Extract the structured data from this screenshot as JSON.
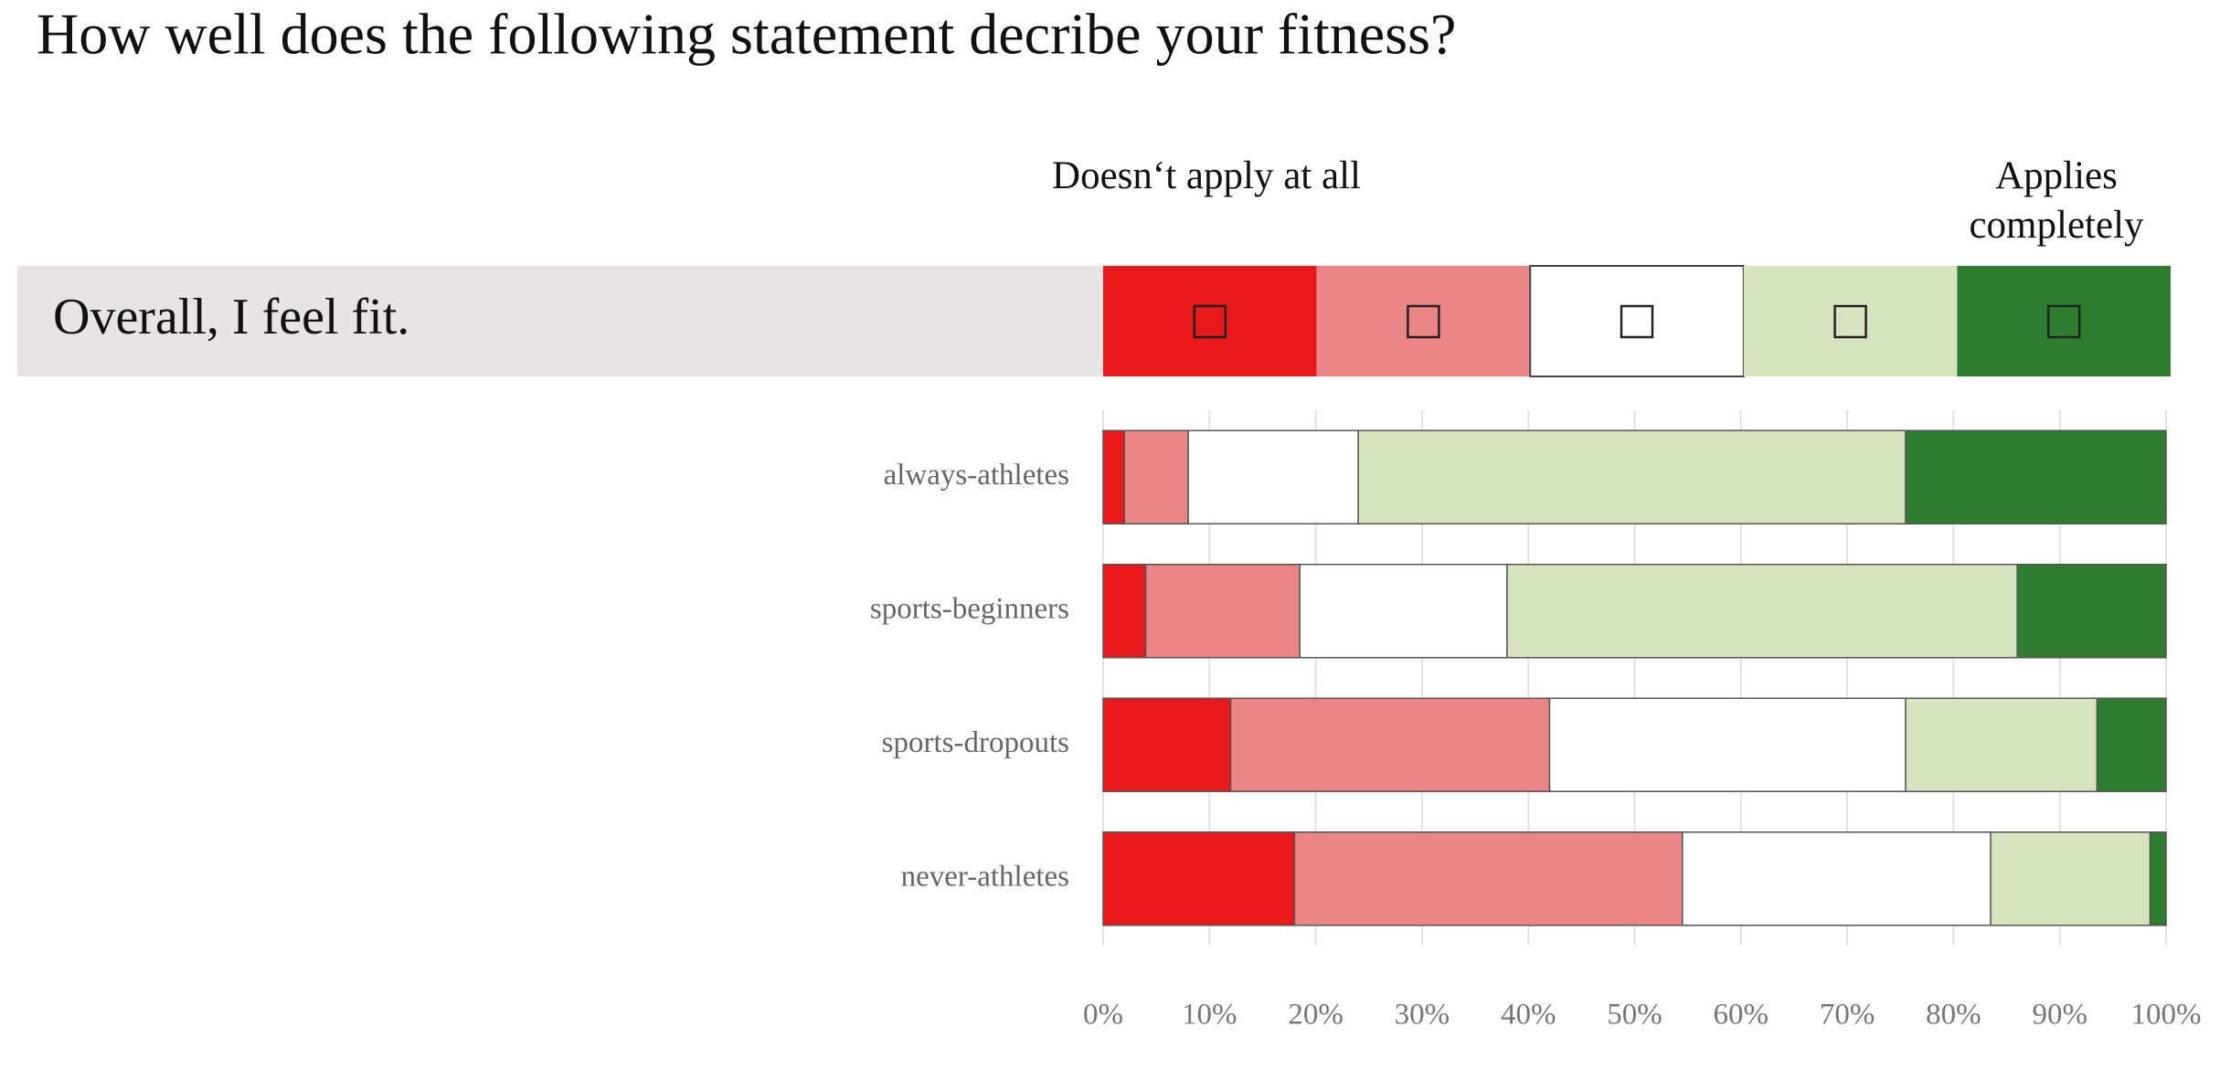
{
  "chart_data": {
    "type": "bar",
    "orientation": "horizontal",
    "stacked": true,
    "title": "How well does the following statement decribe your fitness?",
    "statement": "Overall, I feel fit.",
    "scale_labels": [
      "Doesn‘t apply at all",
      "Applies completely"
    ],
    "categories": [
      "always-athletes",
      "sports-beginners",
      "sports-dropouts",
      "never-athletes"
    ],
    "series": [
      {
        "color": "#e8191a",
        "values": [
          2,
          4,
          12,
          18
        ]
      },
      {
        "color": "#ec8585",
        "values": [
          6,
          14.5,
          30,
          36.5
        ]
      },
      {
        "color": "#ffffff",
        "values": [
          16,
          19.5,
          33.5,
          29
        ]
      },
      {
        "color": "#d6e5bf",
        "values": [
          51.5,
          48,
          18,
          15
        ]
      },
      {
        "color": "#2e7d2e",
        "values": [
          24.5,
          14,
          6.5,
          1.5
        ]
      }
    ],
    "xlim": [
      0,
      100
    ],
    "xticks": [
      {
        "value": 0,
        "label": "0%"
      },
      {
        "value": 10,
        "label": "10%"
      },
      {
        "value": 20,
        "label": "20%"
      },
      {
        "value": 30,
        "label": "30%"
      },
      {
        "value": 40,
        "label": "40%"
      },
      {
        "value": 50,
        "label": "50%"
      },
      {
        "value": 60,
        "label": "60%"
      },
      {
        "value": 70,
        "label": "70%"
      },
      {
        "value": 80,
        "label": "80%"
      },
      {
        "value": 90,
        "label": "90%"
      },
      {
        "value": 100,
        "label": "100%"
      }
    ],
    "grid": true
  }
}
